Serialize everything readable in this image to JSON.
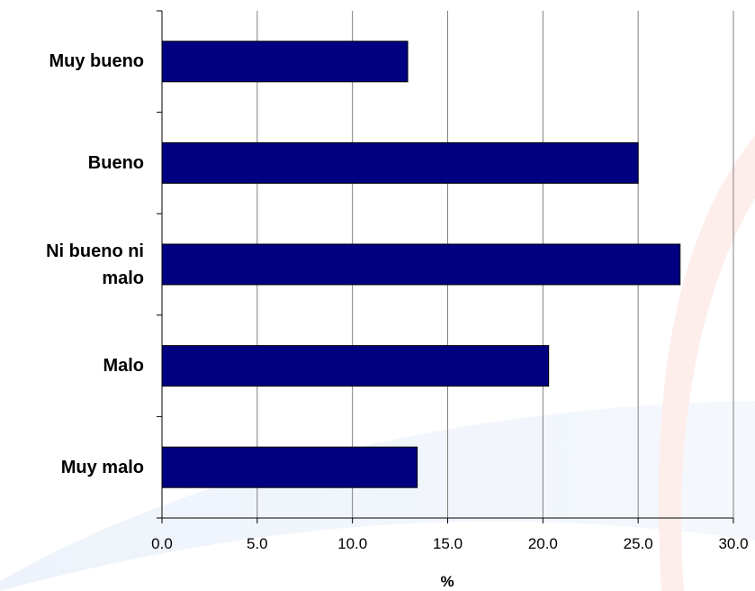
{
  "chart_data": {
    "type": "bar",
    "orientation": "horizontal",
    "categories": [
      "Muy bueno",
      "Bueno",
      "Ni bueno ni malo",
      "Malo",
      "Muy malo"
    ],
    "category_label_lines": [
      [
        "Muy bueno"
      ],
      [
        "Bueno"
      ],
      [
        "Ni bueno ni",
        "malo"
      ],
      [
        "Malo"
      ],
      [
        "Muy malo"
      ]
    ],
    "values": [
      12.9,
      25.0,
      27.2,
      20.3,
      13.4
    ],
    "xlabel": "%",
    "ylabel": "",
    "xlim": [
      0,
      30
    ],
    "xticks": [
      "0.0",
      "5.0",
      "10.0",
      "15.0",
      "20.0",
      "25.0",
      "30.0"
    ],
    "grid": "vertical",
    "legend": "none",
    "colors": {
      "bar": "#000080",
      "grid": "#808080",
      "axis": "#000000"
    }
  }
}
